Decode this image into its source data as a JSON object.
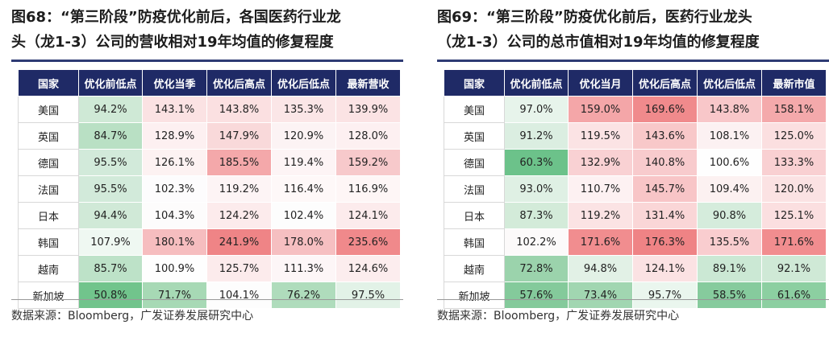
{
  "left": {
    "title_line1": "图68：“第三阶段”防疫优化前后，各国医药行业龙",
    "title_line2": "头（龙1-3）公司的营收相对19年均值的修复程度",
    "headers": [
      "国家",
      "优化前低点",
      "优化当季",
      "优化后高点",
      "优化后低点",
      "最新营收"
    ],
    "rows": [
      {
        "country": "美国",
        "values": [
          "94.2%",
          "143.1%",
          "143.8%",
          "135.3%",
          "139.9%"
        ]
      },
      {
        "country": "英国",
        "values": [
          "84.7%",
          "128.9%",
          "147.9%",
          "120.9%",
          "128.0%"
        ]
      },
      {
        "country": "德国",
        "values": [
          "95.5%",
          "126.1%",
          "185.5%",
          "119.4%",
          "159.2%"
        ]
      },
      {
        "country": "法国",
        "values": [
          "95.5%",
          "102.3%",
          "119.2%",
          "116.4%",
          "116.9%"
        ]
      },
      {
        "country": "日本",
        "values": [
          "94.4%",
          "104.3%",
          "124.2%",
          "102.4%",
          "124.1%"
        ]
      },
      {
        "country": "韩国",
        "values": [
          "107.9%",
          "180.1%",
          "241.9%",
          "178.0%",
          "235.6%"
        ]
      },
      {
        "country": "越南",
        "values": [
          "85.7%",
          "100.9%",
          "125.7%",
          "111.3%",
          "124.6%"
        ]
      },
      {
        "country": "新加坡",
        "values": [
          "50.8%",
          "71.7%",
          "104.1%",
          "76.2%",
          "97.5%"
        ]
      }
    ],
    "colors": [
      [
        "#cfe9d6",
        "#fbe2e3",
        "#fbe0e1",
        "#fbe6e7",
        "#fbe3e4"
      ],
      [
        "#b9e0c4",
        "#fdf0f1",
        "#f9d9da",
        "#fcf3f4",
        "#fdf0f1"
      ],
      [
        "#d2eada",
        "#fdf2f2",
        "#f4a8aa",
        "#fdf4f5",
        "#f7c9cb"
      ],
      [
        "#d2eada",
        "#fdfcfd",
        "#fdf4f5",
        "#fef8f8",
        "#fef6f6"
      ],
      [
        "#d0e9d7",
        "#fdfcfc",
        "#fcebec",
        "#fdfdfd",
        "#fcebec"
      ],
      [
        "#eff8f2",
        "#f6bdbf",
        "#ef8486",
        "#f6bfc1",
        "#f0898b"
      ],
      [
        "#bde2c8",
        "#fefefe",
        "#fcebec",
        "#fdf6f7",
        "#fcedee"
      ],
      [
        "#71c48c",
        "#a7d9b5",
        "#fdfdfd",
        "#afdcbc",
        "#e2f2e7"
      ]
    ],
    "source": "数据来源：Bloomberg，广发证券发展研究中心"
  },
  "right": {
    "title_line1": "图69：“第三阶段”防疫优化前后，医药行业龙头",
    "title_line2": "（龙1-3）公司的总市值相对19年均值的修复程度",
    "headers": [
      "国家",
      "优化前低点",
      "优化当月",
      "优化后高点",
      "优化后低点",
      "最新市值"
    ],
    "rows": [
      {
        "country": "美国",
        "values": [
          "97.0%",
          "159.0%",
          "169.6%",
          "143.8%",
          "158.1%"
        ]
      },
      {
        "country": "英国",
        "values": [
          "91.2%",
          "119.5%",
          "143.6%",
          "108.1%",
          "125.0%"
        ]
      },
      {
        "country": "德国",
        "values": [
          "60.3%",
          "132.9%",
          "140.8%",
          "100.6%",
          "133.3%"
        ]
      },
      {
        "country": "法国",
        "values": [
          "93.0%",
          "110.7%",
          "145.7%",
          "109.4%",
          "120.0%"
        ]
      },
      {
        "country": "日本",
        "values": [
          "87.3%",
          "119.2%",
          "131.4%",
          "90.8%",
          "125.1%"
        ]
      },
      {
        "country": "韩国",
        "values": [
          "102.2%",
          "171.6%",
          "176.3%",
          "135.5%",
          "171.6%"
        ]
      },
      {
        "country": "越南",
        "values": [
          "72.8%",
          "94.8%",
          "124.1%",
          "89.1%",
          "92.1%"
        ]
      },
      {
        "country": "新加坡",
        "values": [
          "57.6%",
          "73.4%",
          "95.7%",
          "58.5%",
          "61.6%"
        ]
      }
    ],
    "colors": [
      [
        "#e7f4eb",
        "#f4a6a8",
        "#f08a8c",
        "#f8c7c9",
        "#f4a9ab"
      ],
      [
        "#dbeee1",
        "#fbe3e4",
        "#f8c8c9",
        "#fcf1f2",
        "#fbdfe0"
      ],
      [
        "#6cc28a",
        "#f9d1d3",
        "#f8cbcd",
        "#fefefe",
        "#f9d0d2"
      ],
      [
        "#dff0e4",
        "#fdf1f2",
        "#f8c5c7",
        "#fcf1f1",
        "#fbe2e3"
      ],
      [
        "#d3ebd9",
        "#fbe3e4",
        "#fad6d7",
        "#d5ecdc",
        "#fbdfe0"
      ],
      [
        "#fcfafa",
        "#f18d8f",
        "#ef8385",
        "#f9cdcf",
        "#f18d8f"
      ],
      [
        "#9bd3ac",
        "#e2f1e6",
        "#fbe2e3",
        "#cbe8d4",
        "#cfe9d6"
      ],
      [
        "#84ca9b",
        "#a1d6b1",
        "#eaf6ee",
        "#86cb9d",
        "#8ccfa1"
      ]
    ],
    "source": "数据来源：Bloomberg，广发证券发展研究中心"
  }
}
